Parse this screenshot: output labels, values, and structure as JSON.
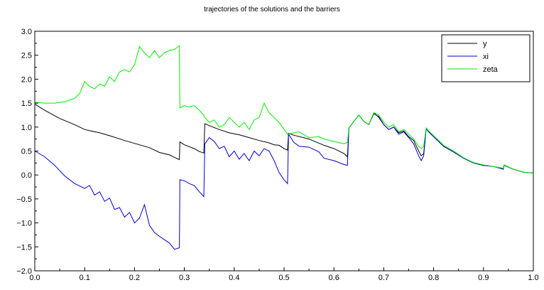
{
  "chart_data": {
    "type": "line",
    "title": "trajectories of the solutions and the barriers",
    "xlabel": "",
    "ylabel": "",
    "xlim": [
      0.0,
      1.0
    ],
    "ylim": [
      -2.0,
      3.0
    ],
    "x_ticks": [
      "0.0",
      "0.1",
      "0.2",
      "0.3",
      "0.4",
      "0.5",
      "0.6",
      "0.7",
      "0.8",
      "0.9",
      "1.0"
    ],
    "y_ticks": [
      "3.0",
      "2.5",
      "2.0",
      "1.5",
      "1.0",
      "0.5",
      "0.0",
      "−0.5",
      "−1.0",
      "−1.5",
      "−2.0"
    ],
    "legend_position": "top-right",
    "grid": false,
    "series": [
      {
        "name": "y",
        "color": "#000000",
        "points": [
          [
            0.0,
            1.48
          ],
          [
            0.02,
            1.35
          ],
          [
            0.05,
            1.18
          ],
          [
            0.08,
            1.05
          ],
          [
            0.1,
            0.95
          ],
          [
            0.13,
            0.88
          ],
          [
            0.15,
            0.82
          ],
          [
            0.18,
            0.72
          ],
          [
            0.2,
            0.66
          ],
          [
            0.23,
            0.57
          ],
          [
            0.25,
            0.47
          ],
          [
            0.27,
            0.42
          ],
          [
            0.28,
            0.37
          ],
          [
            0.29,
            0.32
          ],
          [
            0.291,
            0.69
          ],
          [
            0.3,
            0.63
          ],
          [
            0.32,
            0.55
          ],
          [
            0.33,
            0.49
          ],
          [
            0.339,
            0.46
          ],
          [
            0.341,
            1.07
          ],
          [
            0.35,
            1.03
          ],
          [
            0.37,
            0.95
          ],
          [
            0.39,
            0.88
          ],
          [
            0.41,
            0.84
          ],
          [
            0.43,
            0.78
          ],
          [
            0.45,
            0.72
          ],
          [
            0.47,
            0.67
          ],
          [
            0.48,
            0.63
          ],
          [
            0.49,
            0.62
          ],
          [
            0.5,
            0.55
          ],
          [
            0.507,
            0.52
          ],
          [
            0.509,
            0.87
          ],
          [
            0.52,
            0.83
          ],
          [
            0.55,
            0.75
          ],
          [
            0.58,
            0.62
          ],
          [
            0.6,
            0.55
          ],
          [
            0.62,
            0.45
          ],
          [
            0.627,
            0.38
          ],
          [
            0.63,
            0.98
          ],
          [
            0.64,
            1.12
          ],
          [
            0.65,
            1.25
          ],
          [
            0.66,
            1.12
          ],
          [
            0.67,
            1.05
          ],
          [
            0.68,
            1.28
          ],
          [
            0.69,
            1.22
          ],
          [
            0.7,
            1.05
          ],
          [
            0.71,
            0.95
          ],
          [
            0.72,
            1.0
          ],
          [
            0.73,
            0.88
          ],
          [
            0.74,
            0.92
          ],
          [
            0.75,
            0.8
          ],
          [
            0.76,
            0.72
          ],
          [
            0.77,
            0.5
          ],
          [
            0.775,
            0.4
          ],
          [
            0.78,
            0.45
          ],
          [
            0.785,
            0.97
          ],
          [
            0.79,
            0.9
          ],
          [
            0.8,
            0.8
          ],
          [
            0.82,
            0.6
          ],
          [
            0.84,
            0.48
          ],
          [
            0.86,
            0.35
          ],
          [
            0.88,
            0.25
          ],
          [
            0.9,
            0.2
          ],
          [
            0.92,
            0.18
          ],
          [
            0.94,
            0.13
          ],
          [
            0.941,
            0.21
          ],
          [
            0.96,
            0.12
          ],
          [
            0.98,
            0.06
          ],
          [
            1.0,
            0.04
          ]
        ]
      },
      {
        "name": "xi",
        "color": "#0000cc",
        "points": [
          [
            0.0,
            0.5
          ],
          [
            0.02,
            0.38
          ],
          [
            0.04,
            0.2
          ],
          [
            0.06,
            -0.02
          ],
          [
            0.08,
            -0.18
          ],
          [
            0.1,
            -0.28
          ],
          [
            0.11,
            -0.22
          ],
          [
            0.12,
            -0.42
          ],
          [
            0.13,
            -0.35
          ],
          [
            0.14,
            -0.55
          ],
          [
            0.15,
            -0.48
          ],
          [
            0.16,
            -0.72
          ],
          [
            0.17,
            -0.68
          ],
          [
            0.18,
            -0.88
          ],
          [
            0.19,
            -0.78
          ],
          [
            0.2,
            -1.0
          ],
          [
            0.21,
            -0.9
          ],
          [
            0.22,
            -0.62
          ],
          [
            0.23,
            -1.05
          ],
          [
            0.24,
            -1.2
          ],
          [
            0.25,
            -1.28
          ],
          [
            0.26,
            -1.35
          ],
          [
            0.27,
            -1.42
          ],
          [
            0.28,
            -1.55
          ],
          [
            0.29,
            -1.52
          ],
          [
            0.291,
            -0.1
          ],
          [
            0.3,
            -0.12
          ],
          [
            0.31,
            -0.18
          ],
          [
            0.32,
            -0.22
          ],
          [
            0.33,
            -0.35
          ],
          [
            0.339,
            -0.45
          ],
          [
            0.341,
            0.65
          ],
          [
            0.35,
            0.78
          ],
          [
            0.36,
            0.7
          ],
          [
            0.37,
            0.55
          ],
          [
            0.38,
            0.6
          ],
          [
            0.39,
            0.38
          ],
          [
            0.4,
            0.5
          ],
          [
            0.41,
            0.33
          ],
          [
            0.42,
            0.45
          ],
          [
            0.43,
            0.3
          ],
          [
            0.44,
            0.5
          ],
          [
            0.45,
            0.4
          ],
          [
            0.46,
            0.55
          ],
          [
            0.47,
            0.5
          ],
          [
            0.48,
            0.3
          ],
          [
            0.49,
            0.05
          ],
          [
            0.5,
            -0.1
          ],
          [
            0.507,
            -0.18
          ],
          [
            0.509,
            0.85
          ],
          [
            0.52,
            0.68
          ],
          [
            0.53,
            0.6
          ],
          [
            0.55,
            0.58
          ],
          [
            0.57,
            0.48
          ],
          [
            0.58,
            0.35
          ],
          [
            0.6,
            0.3
          ],
          [
            0.62,
            0.22
          ],
          [
            0.627,
            0.2
          ],
          [
            0.63,
            0.98
          ],
          [
            0.64,
            1.12
          ],
          [
            0.65,
            1.25
          ],
          [
            0.66,
            1.12
          ],
          [
            0.67,
            1.05
          ],
          [
            0.68,
            1.3
          ],
          [
            0.69,
            1.2
          ],
          [
            0.7,
            1.05
          ],
          [
            0.71,
            0.95
          ],
          [
            0.72,
            1.0
          ],
          [
            0.73,
            0.85
          ],
          [
            0.74,
            0.9
          ],
          [
            0.75,
            0.78
          ],
          [
            0.76,
            0.65
          ],
          [
            0.77,
            0.4
          ],
          [
            0.775,
            0.3
          ],
          [
            0.78,
            0.4
          ],
          [
            0.785,
            0.97
          ],
          [
            0.79,
            0.9
          ],
          [
            0.8,
            0.8
          ],
          [
            0.82,
            0.6
          ],
          [
            0.84,
            0.48
          ],
          [
            0.86,
            0.35
          ],
          [
            0.88,
            0.25
          ],
          [
            0.9,
            0.2
          ],
          [
            0.92,
            0.18
          ],
          [
            0.94,
            0.12
          ],
          [
            0.941,
            0.2
          ],
          [
            0.96,
            0.12
          ],
          [
            0.98,
            0.06
          ],
          [
            1.0,
            0.04
          ]
        ]
      },
      {
        "name": "zeta",
        "color": "#00ee00",
        "points": [
          [
            0.0,
            1.52
          ],
          [
            0.02,
            1.5
          ],
          [
            0.04,
            1.5
          ],
          [
            0.06,
            1.53
          ],
          [
            0.08,
            1.6
          ],
          [
            0.09,
            1.7
          ],
          [
            0.1,
            1.95
          ],
          [
            0.11,
            1.85
          ],
          [
            0.12,
            1.8
          ],
          [
            0.13,
            1.9
          ],
          [
            0.14,
            1.85
          ],
          [
            0.15,
            2.05
          ],
          [
            0.16,
            1.95
          ],
          [
            0.17,
            2.15
          ],
          [
            0.18,
            2.2
          ],
          [
            0.19,
            2.15
          ],
          [
            0.2,
            2.3
          ],
          [
            0.21,
            2.68
          ],
          [
            0.22,
            2.55
          ],
          [
            0.23,
            2.45
          ],
          [
            0.24,
            2.6
          ],
          [
            0.25,
            2.45
          ],
          [
            0.26,
            2.55
          ],
          [
            0.27,
            2.6
          ],
          [
            0.28,
            2.62
          ],
          [
            0.29,
            2.7
          ],
          [
            0.291,
            1.4
          ],
          [
            0.3,
            1.45
          ],
          [
            0.31,
            1.42
          ],
          [
            0.32,
            1.45
          ],
          [
            0.33,
            1.35
          ],
          [
            0.339,
            1.25
          ],
          [
            0.341,
            1.2
          ],
          [
            0.35,
            1.1
          ],
          [
            0.36,
            1.15
          ],
          [
            0.37,
            1.0
          ],
          [
            0.38,
            1.05
          ],
          [
            0.39,
            1.2
          ],
          [
            0.4,
            1.1
          ],
          [
            0.41,
            1.0
          ],
          [
            0.42,
            1.1
          ],
          [
            0.43,
            0.95
          ],
          [
            0.44,
            1.15
          ],
          [
            0.45,
            1.2
          ],
          [
            0.46,
            1.5
          ],
          [
            0.47,
            1.3
          ],
          [
            0.48,
            1.2
          ],
          [
            0.49,
            1.1
          ],
          [
            0.5,
            0.95
          ],
          [
            0.507,
            0.85
          ],
          [
            0.52,
            0.88
          ],
          [
            0.53,
            0.9
          ],
          [
            0.55,
            0.78
          ],
          [
            0.57,
            0.8
          ],
          [
            0.58,
            0.75
          ],
          [
            0.6,
            0.7
          ],
          [
            0.62,
            0.65
          ],
          [
            0.627,
            0.68
          ],
          [
            0.63,
            0.98
          ],
          [
            0.64,
            1.12
          ],
          [
            0.65,
            1.25
          ],
          [
            0.66,
            1.12
          ],
          [
            0.67,
            1.05
          ],
          [
            0.68,
            1.3
          ],
          [
            0.69,
            1.25
          ],
          [
            0.7,
            1.1
          ],
          [
            0.71,
            1.0
          ],
          [
            0.72,
            1.05
          ],
          [
            0.73,
            0.9
          ],
          [
            0.74,
            0.95
          ],
          [
            0.75,
            0.85
          ],
          [
            0.76,
            0.75
          ],
          [
            0.77,
            0.6
          ],
          [
            0.775,
            0.55
          ],
          [
            0.78,
            0.6
          ],
          [
            0.785,
            0.98
          ],
          [
            0.79,
            0.92
          ],
          [
            0.8,
            0.82
          ],
          [
            0.82,
            0.62
          ],
          [
            0.84,
            0.5
          ],
          [
            0.86,
            0.36
          ],
          [
            0.88,
            0.26
          ],
          [
            0.9,
            0.21
          ],
          [
            0.92,
            0.18
          ],
          [
            0.94,
            0.14
          ],
          [
            0.941,
            0.21
          ],
          [
            0.96,
            0.12
          ],
          [
            0.98,
            0.06
          ],
          [
            1.0,
            0.04
          ]
        ]
      }
    ]
  }
}
